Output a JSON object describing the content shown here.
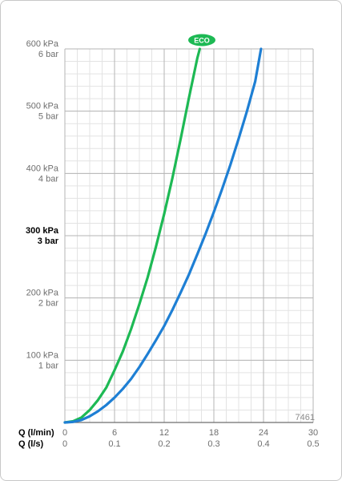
{
  "chart_data": {
    "type": "line",
    "code": "7461",
    "badge": "ECO",
    "colors": {
      "eco": "#1db954",
      "standard": "#1e7fd4",
      "grid_major": "#b5b5b5",
      "grid_minor": "#e3e3e3"
    },
    "x_axis": {
      "label_lmin": "Q (l/min)",
      "label_ls": "Q (l/s)",
      "range": [
        0,
        30
      ],
      "ticks_lmin": [
        "0",
        "6",
        "12",
        "18",
        "24",
        "30"
      ],
      "ticks_ls": [
        "0",
        "0.1",
        "0.2",
        "0.3",
        "0.4",
        "0.5"
      ]
    },
    "y_axis": {
      "range": [
        0,
        600
      ],
      "unit": "kPa",
      "ticks": [
        {
          "kpa": "100 kPa",
          "bar": "1 bar",
          "bold": false
        },
        {
          "kpa": "200 kPa",
          "bar": "2 bar",
          "bold": false
        },
        {
          "kpa": "300 kPa",
          "bar": "3 bar",
          "bold": true
        },
        {
          "kpa": "400 kPa",
          "bar": "4 bar",
          "bold": false
        },
        {
          "kpa": "500 kPa",
          "bar": "5 bar",
          "bold": false
        },
        {
          "kpa": "600 kPa",
          "bar": "6 bar",
          "bold": false
        }
      ]
    },
    "series": [
      {
        "key": "eco",
        "color": "#1db954",
        "x": [
          0,
          1,
          2,
          3,
          4,
          5,
          6,
          7,
          8,
          9,
          10,
          11,
          12,
          13,
          14,
          15,
          16,
          16.3
        ],
        "y": [
          0,
          2,
          8,
          20,
          36,
          56,
          84,
          114,
          150,
          190,
          233,
          282,
          335,
          393,
          456,
          522,
          585,
          600
        ]
      },
      {
        "key": "standard",
        "color": "#1e7fd4",
        "x": [
          0,
          1,
          2,
          3,
          4,
          5,
          6,
          7,
          8,
          9,
          10,
          11,
          12,
          13,
          14,
          15,
          16,
          17,
          18,
          19,
          20,
          21,
          22,
          23,
          23.7
        ],
        "y": [
          0,
          1,
          4,
          10,
          18,
          28,
          40,
          54,
          70,
          89,
          110,
          132,
          155,
          181,
          209,
          238,
          270,
          303,
          338,
          375,
          414,
          456,
          500,
          548,
          600
        ]
      }
    ]
  }
}
